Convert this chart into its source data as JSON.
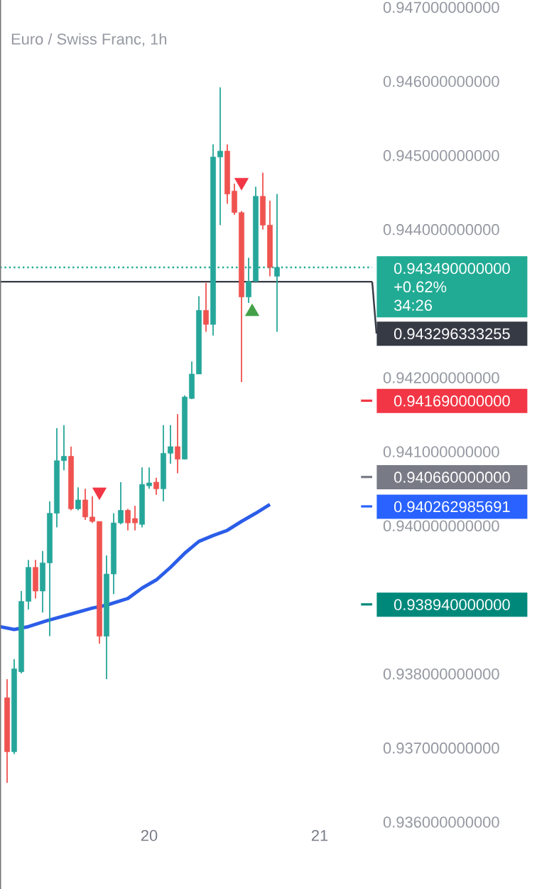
{
  "chart_data": {
    "type": "candlestick",
    "title": "Euro / Swiss Franc, 1h",
    "x": [
      19.1667,
      19.2083,
      19.25,
      19.2917,
      19.3333,
      19.375,
      19.4167,
      19.4583,
      19.5,
      19.5417,
      19.5833,
      19.625,
      19.6667,
      19.7083,
      19.75,
      19.7917,
      19.8333,
      19.875,
      19.9167,
      19.9583,
      20,
      20.0417,
      20.0833,
      20.125,
      20.1667,
      20.2083,
      20.25,
      20.2917,
      20.3333,
      20.375,
      20.4167,
      20.4583,
      20.5,
      20.5417,
      20.5833,
      20.625,
      20.6667,
      20.7083,
      20.75
    ],
    "ohlc": [
      [
        0.93768,
        0.93793,
        0.93653,
        0.93695
      ],
      [
        0.93695,
        0.9382,
        0.93692,
        0.93807
      ],
      [
        0.93803,
        0.93912,
        0.93801,
        0.93898
      ],
      [
        0.93898,
        0.93954,
        0.93887,
        0.93944
      ],
      [
        0.93944,
        0.93954,
        0.93902,
        0.93912
      ],
      [
        0.93912,
        0.93966,
        0.93883,
        0.9395
      ],
      [
        0.9395,
        0.94033,
        0.93851,
        0.94017
      ],
      [
        0.94017,
        0.94132,
        0.93998,
        0.94088
      ],
      [
        0.94088,
        0.94136,
        0.94075,
        0.94094
      ],
      [
        0.94094,
        0.94107,
        0.94021,
        0.94023
      ],
      [
        0.94023,
        0.94052,
        0.94021,
        0.94035
      ],
      [
        0.94035,
        0.9405,
        0.94008,
        0.94012
      ],
      [
        0.94012,
        0.9404,
        0.94004,
        0.94006
      ],
      [
        0.94006,
        0.94006,
        0.93841,
        0.93851
      ],
      [
        0.93851,
        0.9396,
        0.93793,
        0.93935
      ],
      [
        0.93935,
        0.94017,
        0.93908,
        0.94004
      ],
      [
        0.94004,
        0.94059,
        0.94002,
        0.94021
      ],
      [
        0.94021,
        0.94023,
        0.93994,
        0.94004
      ],
      [
        0.9401,
        0.94027,
        0.93994,
        0.94004
      ],
      [
        0.94002,
        0.94079,
        0.93998,
        0.94056
      ],
      [
        0.94054,
        0.94079,
        0.9405,
        0.94058
      ],
      [
        0.94059,
        0.94065,
        0.94042,
        0.9405
      ],
      [
        0.9405,
        0.94136,
        0.94033,
        0.94098
      ],
      [
        0.94098,
        0.94136,
        0.94084,
        0.94107
      ],
      [
        0.94107,
        0.94151,
        0.94071,
        0.9409
      ],
      [
        0.9409,
        0.94176,
        0.9409,
        0.94174
      ],
      [
        0.94172,
        0.94222,
        0.94171,
        0.94205
      ],
      [
        0.94205,
        0.9431,
        0.94205,
        0.94291
      ],
      [
        0.94291,
        0.94328,
        0.94262,
        0.94272
      ],
      [
        0.94272,
        0.94515,
        0.94257,
        0.94498
      ],
      [
        0.94498,
        0.94592,
        0.94406,
        0.94506
      ],
      [
        0.94506,
        0.94515,
        0.94435,
        0.94448
      ],
      [
        0.94452,
        0.94462,
        0.9442,
        0.94423
      ],
      [
        0.94423,
        0.94425,
        0.94194,
        0.94309
      ],
      [
        0.94309,
        0.94362,
        0.94301,
        0.9433
      ],
      [
        0.9433,
        0.94458,
        0.9433,
        0.94445
      ],
      [
        0.94445,
        0.94477,
        0.944,
        0.94406
      ],
      [
        0.94406,
        0.94439,
        0.94337,
        0.94349
      ],
      [
        0.94337,
        0.94448,
        0.94262,
        0.94349
      ]
    ],
    "colors": [
      "#ef5350",
      "#26a69a",
      "#26a69a",
      "#26a69a",
      "#ef5350",
      "#26a69a",
      "#26a69a",
      "#26a69a",
      "#26a69a",
      "#ef5350",
      "#26a69a",
      "#ef5350",
      "#ef5350",
      "#ef5350",
      "#26a69a",
      "#26a69a",
      "#26a69a",
      "#ef5350",
      "#ef5350",
      "#26a69a",
      "#26a69a",
      "#ef5350",
      "#26a69a",
      "#26a69a",
      "#ef5350",
      "#26a69a",
      "#26a69a",
      "#26a69a",
      "#ef5350",
      "#26a69a",
      "#26a69a",
      "#ef5350",
      "#ef5350",
      "#ef5350",
      "#26a69a",
      "#26a69a",
      "#ef5350",
      "#ef5350",
      "#26a69a"
    ],
    "series": [
      {
        "type": "line",
        "color": "#2b5de8",
        "x": [
          19.125,
          19.2083,
          19.2917,
          19.4,
          19.5417,
          19.6667,
          19.75,
          19.875,
          19.9583,
          20.0417,
          20.125,
          20.2083,
          20.2917,
          20.375,
          20.4583,
          20.5417,
          20.625,
          20.7083
        ],
        "values": [
          0.93864,
          0.9386,
          0.93864,
          0.93872,
          0.93881,
          0.93889,
          0.93893,
          0.93902,
          0.93916,
          0.93927,
          0.93944,
          0.93963,
          0.93979,
          0.93987,
          0.93994,
          0.94006,
          0.94017,
          0.94029
        ]
      },
      {
        "type": "scatter",
        "marker": "triangle-down",
        "color": "#f23645",
        "x": [
          19.7083,
          20.5417
        ],
        "values": [
          0.94046,
          0.94464
        ]
      },
      {
        "type": "scatter",
        "marker": "triangle",
        "color": "#43a047",
        "x": [
          20.6042
        ],
        "values": [
          0.94289
        ]
      }
    ],
    "xlim": [
      19.125,
      21.3083
    ],
    "xticks": [
      20,
      21
    ],
    "ylim": [
      0.936,
      0.9471
    ],
    "yticks": [
      {
        "value": 0.936,
        "label": "0.936000000000"
      },
      {
        "value": 0.937,
        "label": "0.937000000000"
      },
      {
        "value": 0.938,
        "label": "0.938000000000"
      },
      {
        "value": 0.94,
        "label": "0.940000000000"
      },
      {
        "value": 0.941,
        "label": "0.941000000000"
      },
      {
        "value": 0.942,
        "label": "0.942000000000"
      },
      {
        "value": 0.944,
        "label": "0.944000000000"
      },
      {
        "value": 0.945,
        "label": "0.945000000000"
      },
      {
        "value": 0.946,
        "label": "0.946000000000"
      },
      {
        "value": 0.947,
        "label": "0.947000000000"
      }
    ],
    "ref_lines": [
      {
        "axis": "y",
        "value": 0.94349,
        "label": "0.943490000000",
        "color": "#22ab94",
        "line_style": "dotted"
      },
      {
        "axis": "y",
        "value": 0.943296333255,
        "label": "0.943296333255",
        "color": "#363a45",
        "line_style": "solid"
      },
      {
        "axis": "y",
        "value": 0.94169,
        "label": "0.941690000000",
        "color": "#f23645"
      },
      {
        "axis": "y",
        "value": 0.94066,
        "label": "0.940660000000",
        "color": "#787b86"
      },
      {
        "axis": "y",
        "value": 0.940262985691,
        "label": "0.940262985691",
        "color": "#2962ff"
      },
      {
        "axis": "y",
        "value": 0.93894,
        "label": "0.938940000000",
        "color": "#00897b"
      }
    ],
    "annotations": [
      "+0.62%",
      "34:26"
    ]
  }
}
